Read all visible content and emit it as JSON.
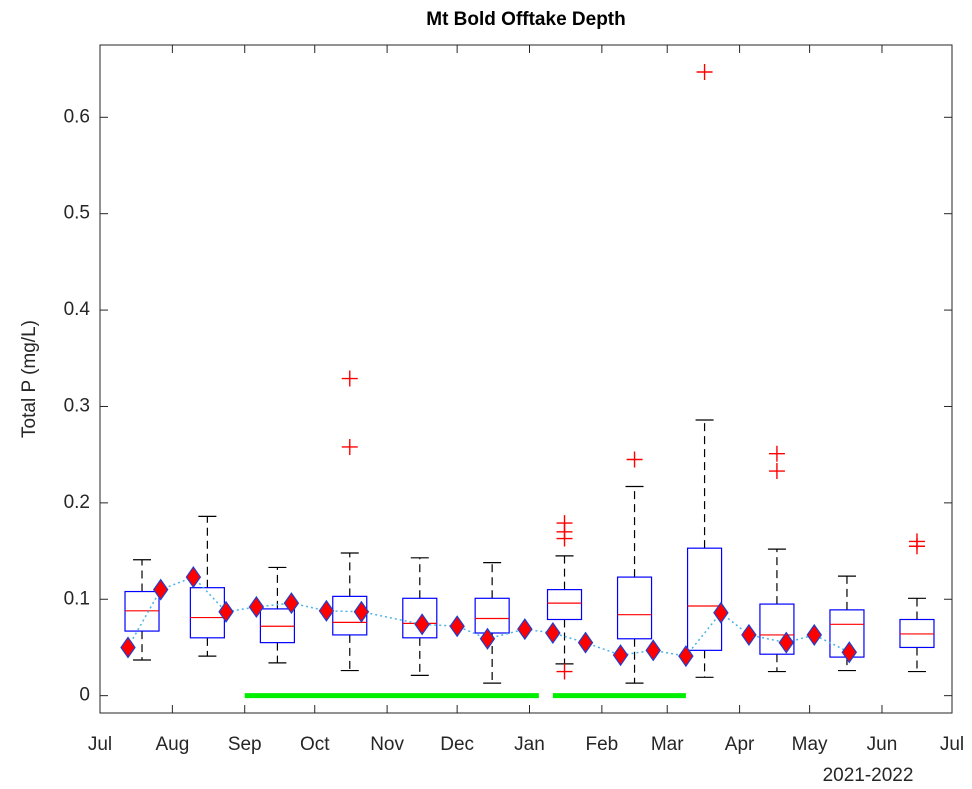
{
  "chart_data": {
    "type": "box",
    "title": "Mt Bold Offtake Depth",
    "ylabel": "Total P (mg/L)",
    "xlabel": "2021-2022",
    "xlim": [
      0,
      365
    ],
    "xticks": [
      {
        "value": 0,
        "label": "Jul"
      },
      {
        "value": 31,
        "label": "Aug"
      },
      {
        "value": 62,
        "label": "Sep"
      },
      {
        "value": 92,
        "label": "Oct"
      },
      {
        "value": 123,
        "label": "Nov"
      },
      {
        "value": 153,
        "label": "Dec"
      },
      {
        "value": 184,
        "label": "Jan"
      },
      {
        "value": 215,
        "label": "Feb"
      },
      {
        "value": 243,
        "label": "Mar"
      },
      {
        "value": 274,
        "label": "Apr"
      },
      {
        "value": 304,
        "label": "May"
      },
      {
        "value": 335,
        "label": "Jun"
      },
      {
        "value": 365,
        "label": "Jul"
      }
    ],
    "ylim": [
      -0.018,
      0.675
    ],
    "yticks": [
      0,
      0.1,
      0.2,
      0.3,
      0.4,
      0.5,
      0.6
    ],
    "box_color": "#0000ff",
    "median_color": "#ff0000",
    "outlier_color": "#ff0000",
    "boxes": [
      {
        "position": 18,
        "whisker_low": 0.037,
        "q1": 0.067,
        "median": 0.088,
        "q3": 0.108,
        "whisker_high": 0.141,
        "outliers": []
      },
      {
        "position": 46,
        "whisker_low": 0.041,
        "q1": 0.06,
        "median": 0.081,
        "q3": 0.112,
        "whisker_high": 0.186,
        "outliers": []
      },
      {
        "position": 76,
        "whisker_low": 0.034,
        "q1": 0.055,
        "median": 0.072,
        "q3": 0.09,
        "whisker_high": 0.133,
        "outliers": []
      },
      {
        "position": 107,
        "whisker_low": 0.026,
        "q1": 0.063,
        "median": 0.076,
        "q3": 0.103,
        "whisker_high": 0.148,
        "outliers": [
          0.258,
          0.329
        ]
      },
      {
        "position": 137,
        "whisker_low": 0.021,
        "q1": 0.06,
        "median": 0.075,
        "q3": 0.101,
        "whisker_high": 0.143,
        "outliers": []
      },
      {
        "position": 168,
        "whisker_low": 0.013,
        "q1": 0.065,
        "median": 0.08,
        "q3": 0.101,
        "whisker_high": 0.138,
        "outliers": []
      },
      {
        "position": 199,
        "whisker_low": 0.033,
        "q1": 0.079,
        "median": 0.096,
        "q3": 0.11,
        "whisker_high": 0.145,
        "outliers": [
          0.025,
          0.163,
          0.17,
          0.179
        ]
      },
      {
        "position": 229,
        "whisker_low": 0.013,
        "q1": 0.059,
        "median": 0.084,
        "q3": 0.123,
        "whisker_high": 0.217,
        "outliers": [
          0.245
        ]
      },
      {
        "position": 259,
        "whisker_low": 0.019,
        "q1": 0.047,
        "median": 0.093,
        "q3": 0.153,
        "whisker_high": 0.286,
        "outliers": [
          0.647
        ]
      },
      {
        "position": 290,
        "whisker_low": 0.025,
        "q1": 0.043,
        "median": 0.063,
        "q3": 0.095,
        "whisker_high": 0.152,
        "outliers": [
          0.233,
          0.251
        ]
      },
      {
        "position": 320,
        "whisker_low": 0.026,
        "q1": 0.04,
        "median": 0.074,
        "q3": 0.089,
        "whisker_high": 0.124,
        "outliers": []
      },
      {
        "position": 350,
        "whisker_low": 0.025,
        "q1": 0.05,
        "median": 0.064,
        "q3": 0.079,
        "whisker_high": 0.101,
        "outliers": [
          0.155,
          0.16
        ]
      }
    ],
    "points": {
      "color": "#ff0000",
      "edge_color": "#1f3fd0",
      "line_color": "#4db3e6",
      "x": [
        12,
        26,
        40,
        54,
        67,
        82,
        97,
        112,
        138,
        153,
        166,
        182,
        194,
        208,
        223,
        237,
        251,
        266,
        278,
        294,
        306,
        321
      ],
      "values": [
        0.05,
        0.11,
        0.123,
        0.087,
        0.092,
        0.096,
        0.088,
        0.087,
        0.074,
        0.072,
        0.059,
        0.069,
        0.065,
        0.055,
        0.042,
        0.047,
        0.041,
        0.086,
        0.063,
        0.055,
        0.063,
        0.045
      ]
    },
    "periods": {
      "color": "#00ee00",
      "level": 0,
      "ranges": [
        [
          62,
          188
        ],
        [
          194,
          251
        ]
      ]
    }
  }
}
